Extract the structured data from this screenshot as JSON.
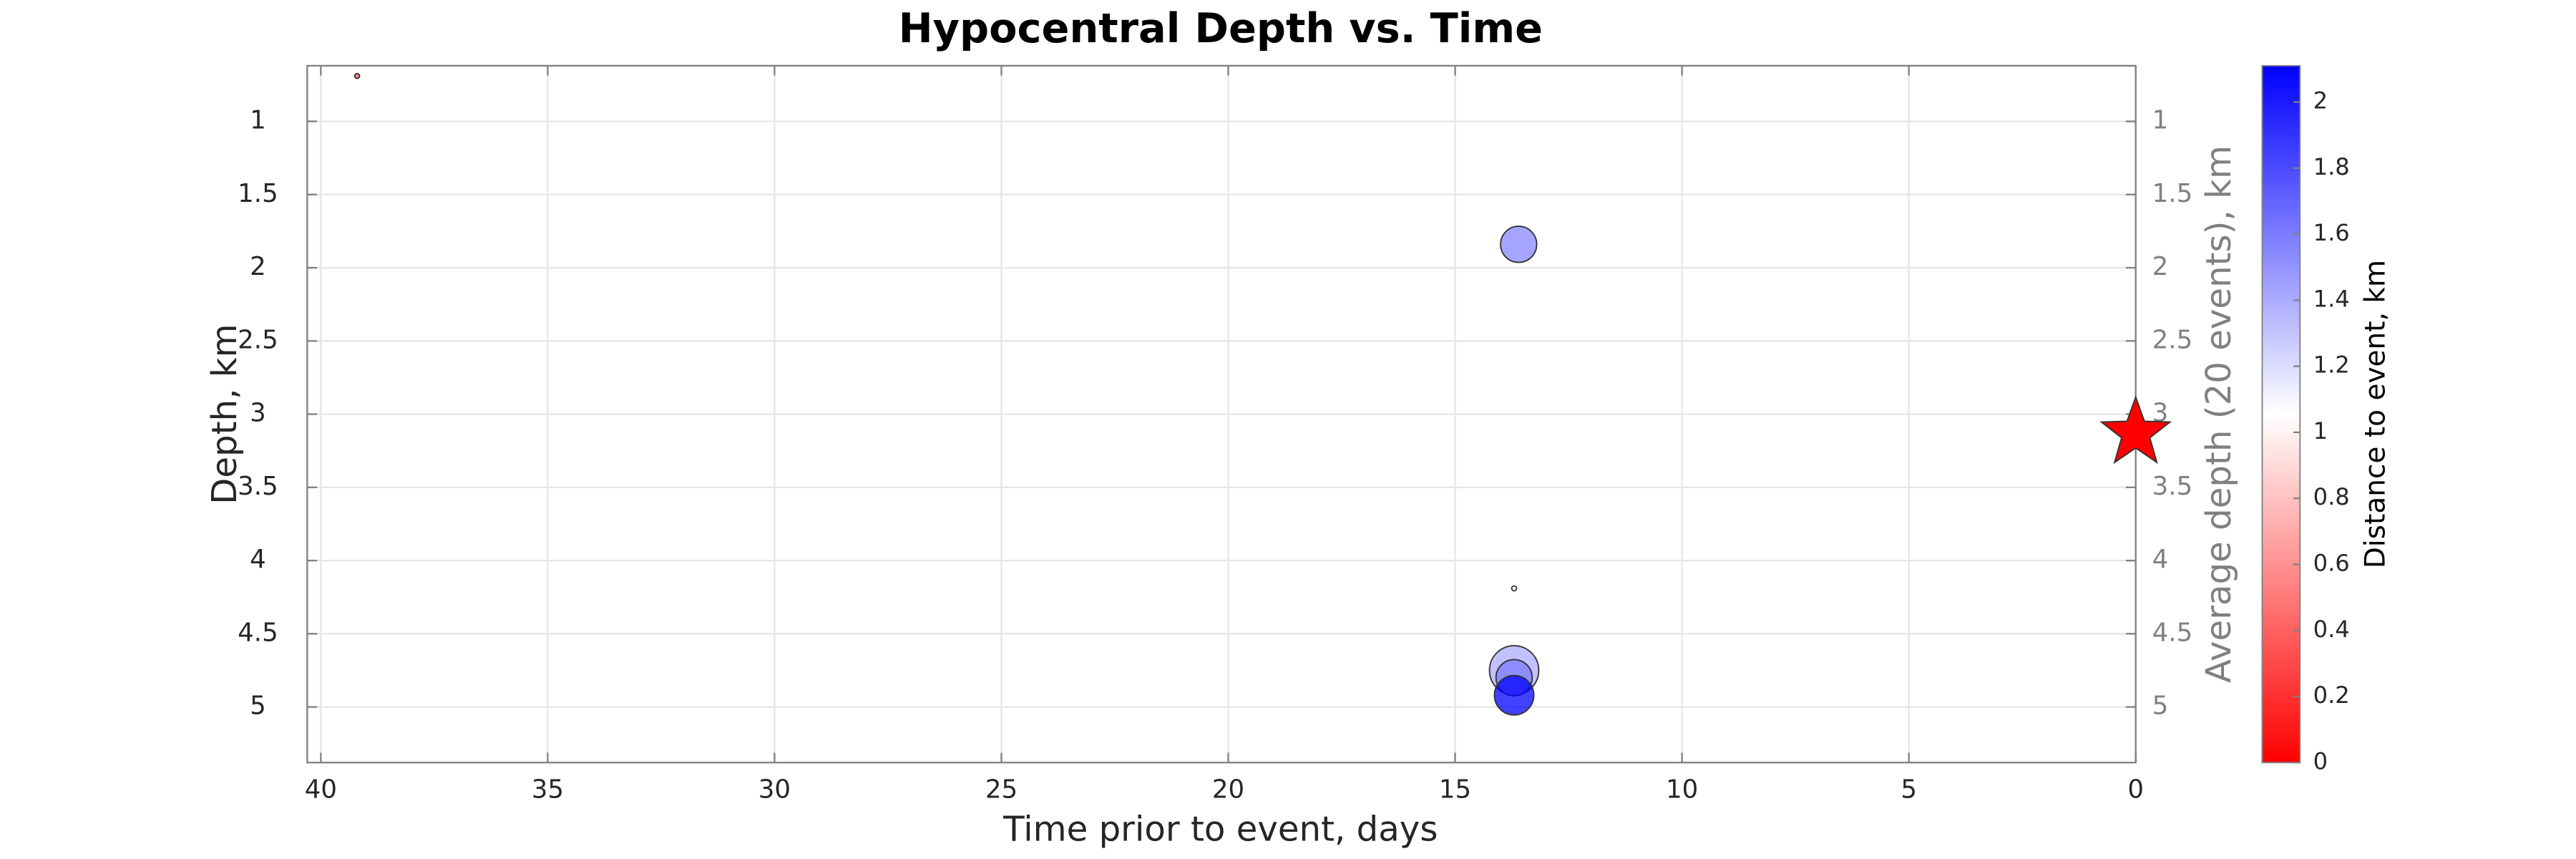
{
  "chart_data": {
    "type": "scatter",
    "title": "Hypocentral Depth vs. Time",
    "x_label": "Time prior to event, days",
    "y_label": "Depth, km",
    "y2_label": "Average depth (20 events), km",
    "colorbar_label": "Distance to event, km",
    "xlim": [
      0,
      40.3
    ],
    "x_reverse": true,
    "xticks": [
      0,
      5,
      10,
      15,
      20,
      25,
      30,
      35,
      40
    ],
    "ylim": [
      0.62,
      5.38
    ],
    "y_reverse": true,
    "yticks": [
      1,
      1.5,
      2,
      2.5,
      3,
      3.5,
      4,
      4.5,
      5
    ],
    "y2lim": [
      0.62,
      5.38
    ],
    "y2ticks": [
      1,
      1.5,
      2,
      2.5,
      3,
      3.5,
      4,
      4.5,
      5
    ],
    "grid": true,
    "clim": [
      0,
      2.11
    ],
    "colormap": [
      "#ff0000",
      "#ffffff",
      "#0000ff"
    ],
    "cticks": [
      0,
      0.2,
      0.4,
      0.6,
      0.8,
      1,
      1.2,
      1.4,
      1.6,
      1.8,
      2
    ],
    "series": [
      {
        "x": [
          39.2,
          13.6,
          13.7,
          13.7,
          13.7,
          13.7
        ],
        "values": [
          0.69,
          1.84,
          4.19,
          4.75,
          4.8,
          4.92
        ],
        "sizes": [
          1.5,
          11,
          1.5,
          15,
          11,
          12
        ],
        "color_values": [
          0.4,
          1.55,
          1.1,
          1.4,
          1.6,
          2.1
        ]
      }
    ],
    "mainshock": {
      "x": 0,
      "y": 3.13,
      "color": "#ff0000"
    }
  }
}
